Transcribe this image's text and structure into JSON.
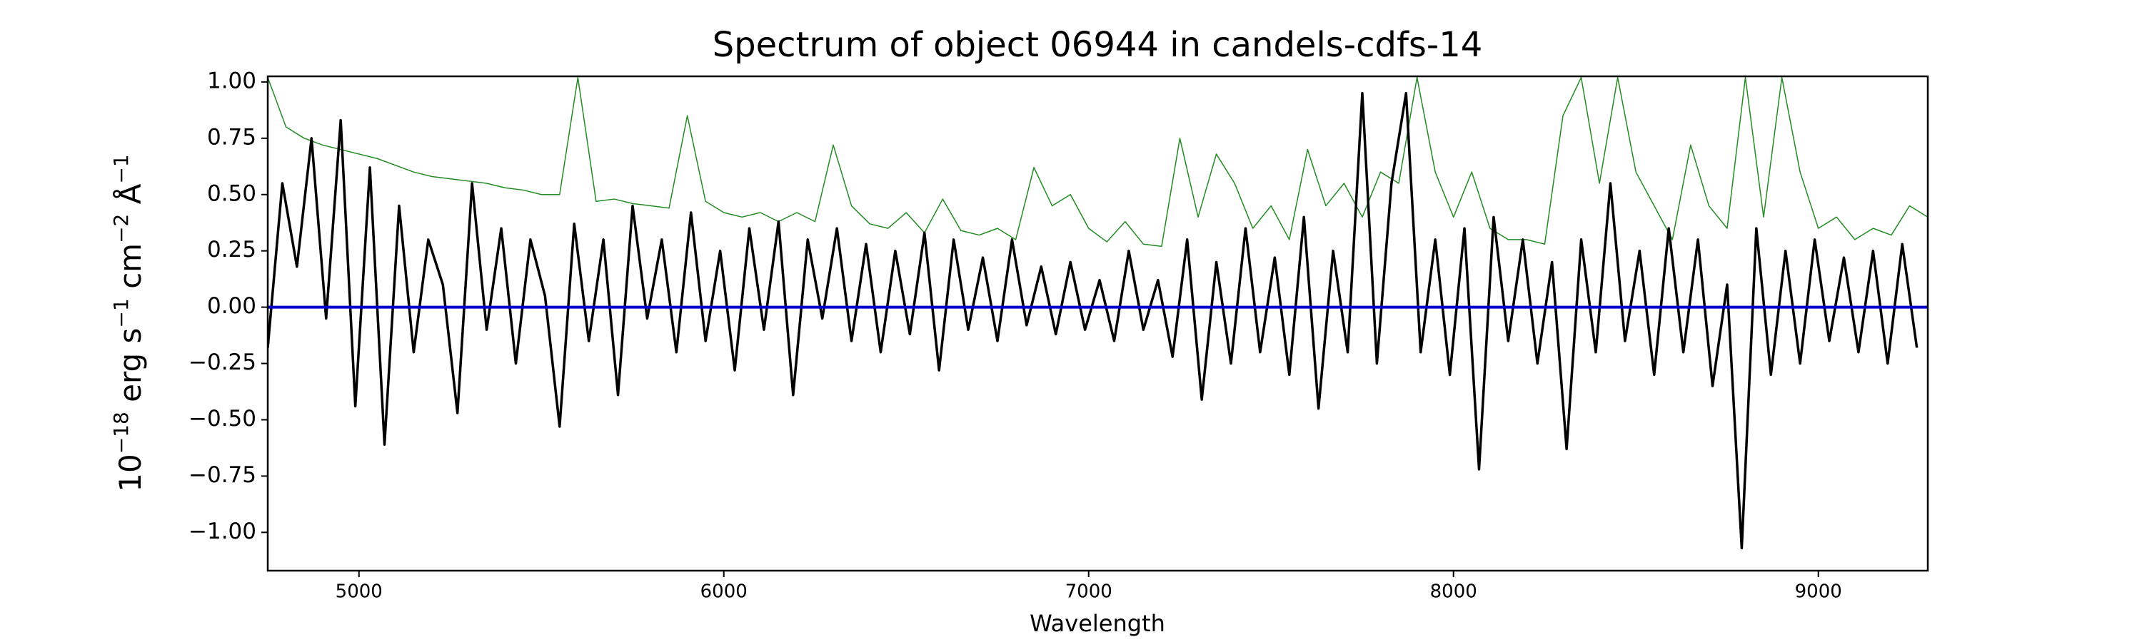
{
  "chart_data": {
    "type": "line",
    "title": "Spectrum of object 06944 in candels-cdfs-14",
    "xlabel": "Wavelength",
    "ylabel": [
      {
        "base": "10",
        "sup": "−18"
      },
      {
        "base": " erg s",
        "sup": "−1"
      },
      {
        "base": " cm",
        "sup": "−2"
      },
      {
        "base": " Å",
        "sup": "−1"
      }
    ],
    "xlim": [
      4750,
      9300
    ],
    "ylim": [
      -1.17,
      1.025
    ],
    "xticks": [
      5000,
      6000,
      7000,
      8000,
      9000
    ],
    "yticks": [
      {
        "value": 1,
        "label": "1.00"
      },
      {
        "value": 0.75,
        "label": "0.75"
      },
      {
        "value": 0.5,
        "label": "0.50"
      },
      {
        "value": 0.25,
        "label": "0.25"
      },
      {
        "value": 0,
        "label": "0.00"
      },
      {
        "value": -0.25,
        "label": "−0.25"
      },
      {
        "value": -0.5,
        "label": "−0.50"
      },
      {
        "value": -0.75,
        "label": "−0.75"
      },
      {
        "value": -1,
        "label": "−1.00"
      }
    ],
    "series": [
      {
        "color": "#228b22",
        "width": 1.5,
        "x": [
          4750,
          4800,
          4850,
          4900,
          4950,
          5000,
          5050,
          5100,
          5150,
          5200,
          5250,
          5300,
          5350,
          5400,
          5450,
          5500,
          5550,
          5600,
          5650,
          5700,
          5750,
          5800,
          5850,
          5900,
          5950,
          6000,
          6050,
          6100,
          6150,
          6200,
          6250,
          6300,
          6350,
          6400,
          6450,
          6500,
          6550,
          6600,
          6650,
          6700,
          6750,
          6800,
          6850,
          6900,
          6950,
          7000,
          7050,
          7100,
          7150,
          7200,
          7250,
          7300,
          7350,
          7400,
          7450,
          7500,
          7550,
          7600,
          7650,
          7700,
          7750,
          7800,
          7850,
          7900,
          7950,
          8000,
          8050,
          8100,
          8150,
          8200,
          8250,
          8300,
          8350,
          8400,
          8450,
          8500,
          8550,
          8600,
          8650,
          8700,
          8750,
          8800,
          8850,
          8900,
          8950,
          9000,
          9050,
          9100,
          9150,
          9200,
          9250,
          9300
        ],
        "values": [
          1.02,
          0.8,
          0.75,
          0.72,
          0.7,
          0.68,
          0.66,
          0.63,
          0.6,
          0.58,
          0.57,
          0.56,
          0.55,
          0.53,
          0.52,
          0.5,
          0.5,
          1.02,
          0.47,
          0.48,
          0.46,
          0.45,
          0.44,
          0.85,
          0.47,
          0.42,
          0.4,
          0.42,
          0.38,
          0.42,
          0.38,
          0.72,
          0.45,
          0.37,
          0.35,
          0.42,
          0.33,
          0.48,
          0.34,
          0.32,
          0.35,
          0.3,
          0.62,
          0.45,
          0.5,
          0.35,
          0.29,
          0.38,
          0.28,
          0.27,
          0.75,
          0.4,
          0.68,
          0.55,
          0.35,
          0.45,
          0.3,
          0.7,
          0.45,
          0.55,
          0.4,
          0.6,
          0.55,
          1.02,
          0.6,
          0.4,
          0.6,
          0.35,
          0.3,
          0.3,
          0.28,
          0.85,
          1.02,
          0.55,
          1.02,
          0.6,
          0.45,
          0.3,
          0.72,
          0.45,
          0.35,
          1.02,
          0.4,
          1.02,
          0.6,
          0.35,
          0.4,
          0.3,
          0.35,
          0.32,
          0.45,
          0.4
        ]
      },
      {
        "color": "#000000",
        "width": 3.5,
        "x": [
          4750,
          4790,
          4830,
          4870,
          4910,
          4950,
          4990,
          5030,
          5070,
          5110,
          5150,
          5190,
          5230,
          5270,
          5310,
          5350,
          5390,
          5430,
          5470,
          5510,
          5550,
          5590,
          5630,
          5670,
          5710,
          5750,
          5790,
          5830,
          5870,
          5910,
          5950,
          5990,
          6030,
          6070,
          6110,
          6150,
          6190,
          6230,
          6270,
          6310,
          6350,
          6390,
          6430,
          6470,
          6510,
          6550,
          6590,
          6630,
          6670,
          6710,
          6750,
          6790,
          6830,
          6870,
          6910,
          6950,
          6990,
          7030,
          7070,
          7110,
          7150,
          7190,
          7230,
          7270,
          7310,
          7350,
          7390,
          7430,
          7470,
          7510,
          7550,
          7590,
          7630,
          7670,
          7710,
          7750,
          7790,
          7830,
          7870,
          7910,
          7950,
          7990,
          8030,
          8070,
          8110,
          8150,
          8190,
          8230,
          8270,
          8310,
          8350,
          8390,
          8430,
          8470,
          8510,
          8550,
          8590,
          8630,
          8670,
          8710,
          8750,
          8790,
          8830,
          8870,
          8910,
          8950,
          8990,
          9030,
          9070,
          9110,
          9150,
          9190,
          9230,
          9270
        ],
        "values": [
          -0.18,
          0.55,
          0.18,
          0.75,
          -0.05,
          0.83,
          -0.44,
          0.62,
          -0.61,
          0.45,
          -0.2,
          0.3,
          0.1,
          -0.47,
          0.55,
          -0.1,
          0.35,
          -0.25,
          0.3,
          0.05,
          -0.53,
          0.37,
          -0.15,
          0.3,
          -0.39,
          0.45,
          -0.05,
          0.3,
          -0.2,
          0.42,
          -0.15,
          0.25,
          -0.28,
          0.35,
          -0.1,
          0.38,
          -0.39,
          0.3,
          -0.05,
          0.35,
          -0.15,
          0.28,
          -0.2,
          0.25,
          -0.12,
          0.33,
          -0.28,
          0.3,
          -0.1,
          0.22,
          -0.15,
          0.3,
          -0.08,
          0.18,
          -0.12,
          0.2,
          -0.1,
          0.12,
          -0.15,
          0.25,
          -0.1,
          0.12,
          -0.22,
          0.3,
          -0.41,
          0.2,
          -0.25,
          0.35,
          -0.2,
          0.22,
          -0.3,
          0.4,
          -0.45,
          0.25,
          -0.2,
          0.95,
          -0.25,
          0.55,
          0.95,
          -0.2,
          0.3,
          -0.3,
          0.35,
          -0.72,
          0.4,
          -0.15,
          0.3,
          -0.25,
          0.2,
          -0.63,
          0.3,
          -0.2,
          0.55,
          -0.15,
          0.25,
          -0.3,
          0.35,
          -0.2,
          0.3,
          -0.35,
          0.1,
          -1.07,
          0.35,
          -0.3,
          0.25,
          -0.25,
          0.3,
          -0.15,
          0.22,
          -0.2,
          0.25,
          -0.25,
          0.28,
          -0.18
        ]
      },
      {
        "color": "#0000cc",
        "width": 4,
        "x": [
          4750,
          9300
        ],
        "values": [
          0,
          0
        ]
      }
    ]
  }
}
